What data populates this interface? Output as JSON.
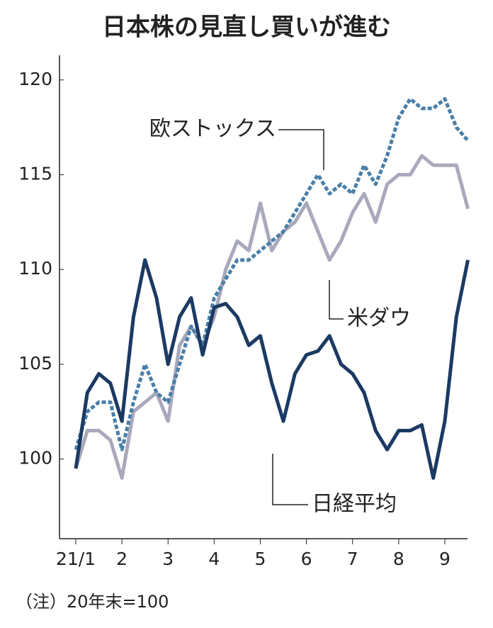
{
  "chart_data": {
    "type": "line",
    "title": "日本株の見直し買いが進む",
    "note": "（注）20年末=100",
    "categories": [
      "21/1",
      null,
      null,
      null,
      "2",
      null,
      null,
      null,
      "3",
      null,
      null,
      null,
      "4",
      null,
      null,
      null,
      "5",
      null,
      null,
      null,
      "6",
      null,
      null,
      null,
      "7",
      null,
      null,
      null,
      "8",
      null,
      null,
      null,
      "9",
      null,
      null
    ],
    "series": [
      {
        "name": "日経平均",
        "color": "#1b3a63",
        "dash": "solid",
        "values": [
          99.5,
          103.5,
          104.5,
          104,
          102,
          107.5,
          110.5,
          108.5,
          105,
          107.5,
          108.5,
          105.5,
          108,
          108.2,
          107.5,
          106,
          106.5,
          104,
          102,
          104.5,
          105.5,
          105.7,
          106.5,
          105,
          104.5,
          103.5,
          101.5,
          100.5,
          101.5,
          101.5,
          101.8,
          99,
          102,
          107.5,
          110.5
        ]
      },
      {
        "name": "米ダウ",
        "color": "#a9a9bd",
        "dash": "solid",
        "values": [
          99.5,
          101.5,
          101.5,
          101,
          99,
          102.5,
          103,
          103.5,
          102,
          106,
          107,
          106,
          107.5,
          110,
          111.5,
          111,
          113.5,
          111,
          112,
          112.5,
          113.5,
          112,
          110.5,
          111.5,
          113,
          114,
          112.5,
          114.5,
          115,
          115,
          116,
          115.5,
          115.5,
          115.5,
          113.2
        ]
      },
      {
        "name": "欧ストックス",
        "color": "#4a7fa8",
        "dash": "dotted",
        "values": [
          100.5,
          102.5,
          103,
          103,
          100.5,
          103,
          105,
          103.5,
          103,
          105,
          107,
          106,
          108.5,
          109.5,
          110.5,
          110.5,
          111,
          111.5,
          112,
          113,
          114,
          115,
          114,
          114.5,
          114,
          115.5,
          114.5,
          116,
          118,
          119,
          118.5,
          118.5,
          119,
          117.5,
          116.8
        ]
      }
    ],
    "ylim": [
      95.8,
      121.3
    ],
    "yticks": [
      100,
      105,
      110,
      115,
      120
    ],
    "grid": false
  }
}
